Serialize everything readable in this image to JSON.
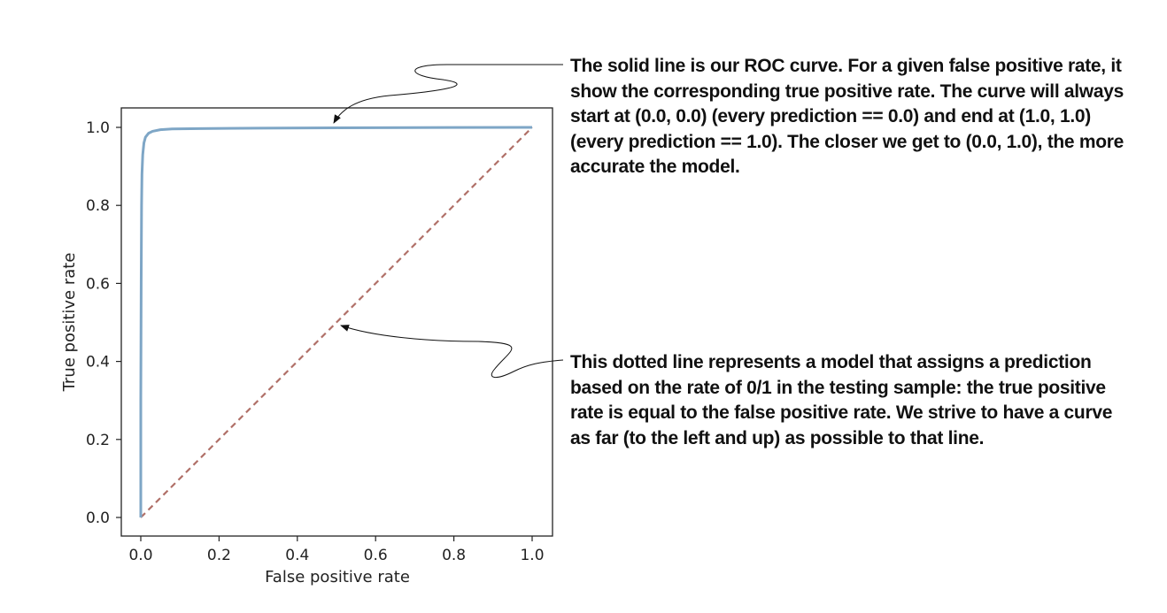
{
  "chart_data": {
    "type": "line",
    "xlabel": "False positive rate",
    "ylabel": "True positive rate",
    "xlim": [
      0.0,
      1.0
    ],
    "ylim": [
      0.0,
      1.0
    ],
    "x_ticks": [
      "0.0",
      "0.2",
      "0.4",
      "0.6",
      "0.8",
      "1.0"
    ],
    "y_ticks": [
      "0.0",
      "0.2",
      "0.4",
      "0.6",
      "0.8",
      "1.0"
    ],
    "grid": false,
    "series": [
      {
        "style": "solid",
        "color": "#7ea6c6",
        "x": [
          0.0,
          0.0,
          0.001,
          0.002,
          0.003,
          0.005,
          0.008,
          0.012,
          0.02,
          0.03,
          0.05,
          0.08,
          0.15,
          0.3,
          0.5,
          0.7,
          1.0
        ],
        "y": [
          0.0,
          0.3,
          0.6,
          0.8,
          0.88,
          0.93,
          0.96,
          0.975,
          0.985,
          0.99,
          0.994,
          0.996,
          0.997,
          0.998,
          0.999,
          0.9995,
          1.0
        ]
      },
      {
        "style": "dashed",
        "color": "#b07068",
        "x": [
          0.0,
          1.0
        ],
        "y": [
          0.0,
          1.0
        ]
      }
    ]
  },
  "annotations": {
    "roc_note": "The solid line is our ROC curve. For a given false positive rate, it show the corresponding true positive rate. The curve will always start at (0.0, 0.0) (every prediction == 0.0) and end at (1.0, 1.0) (every prediction == 1.0). The closer we get to (0.0, 1.0), the more accurate the model.",
    "baseline_note": "This dotted line represents a model that assigns a prediction based on the rate of 0/1 in the testing sample: the true positive rate is equal to the false positive rate. We strive to have a curve as far (to the left and up) as possible to that line."
  }
}
